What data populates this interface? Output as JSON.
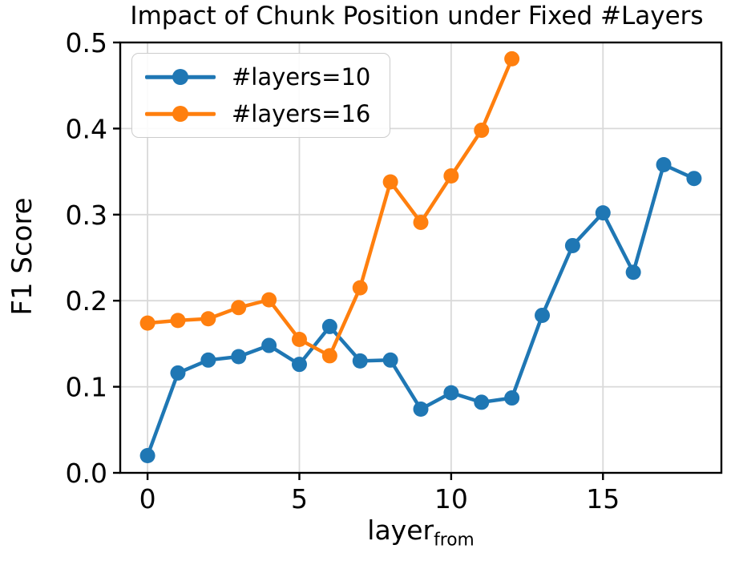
{
  "figure": {
    "background": "#ffffff",
    "axis_color": "#000000",
    "grid_color": "#d9d9d9"
  },
  "chart_data": {
    "type": "line",
    "title": "Impact of Chunk Position under Fixed #Layers",
    "xlabel_base": "layer",
    "xlabel_sub": "from",
    "ylabel": "F1 Score",
    "xlim": [
      -0.9,
      18.9
    ],
    "ylim": [
      0.0,
      0.5
    ],
    "xticks": [
      0,
      5,
      10,
      15
    ],
    "xtick_labels": [
      "0",
      "5",
      "10",
      "15"
    ],
    "yticks": [
      0.0,
      0.1,
      0.2,
      0.3,
      0.4,
      0.5
    ],
    "ytick_labels": [
      "0.0",
      "0.1",
      "0.2",
      "0.3",
      "0.4",
      "0.5"
    ],
    "grid": true,
    "legend_position": "upper left",
    "series": [
      {
        "name": "#layers=10",
        "color": "#1f77b4",
        "marker": "circle",
        "x": [
          0,
          1,
          2,
          3,
          4,
          5,
          6,
          7,
          8,
          9,
          10,
          11,
          12,
          13,
          14,
          15,
          16,
          17,
          18
        ],
        "y": [
          0.02,
          0.116,
          0.131,
          0.135,
          0.148,
          0.126,
          0.17,
          0.13,
          0.131,
          0.074,
          0.093,
          0.082,
          0.087,
          0.183,
          0.264,
          0.302,
          0.233,
          0.358,
          0.342
        ]
      },
      {
        "name": "#layers=16",
        "color": "#ff7f0e",
        "marker": "circle",
        "x": [
          0,
          1,
          2,
          3,
          4,
          5,
          6,
          7,
          8,
          9,
          10,
          11,
          12
        ],
        "y": [
          0.174,
          0.177,
          0.179,
          0.192,
          0.201,
          0.155,
          0.136,
          0.215,
          0.338,
          0.291,
          0.345,
          0.398,
          0.481
        ]
      }
    ]
  }
}
